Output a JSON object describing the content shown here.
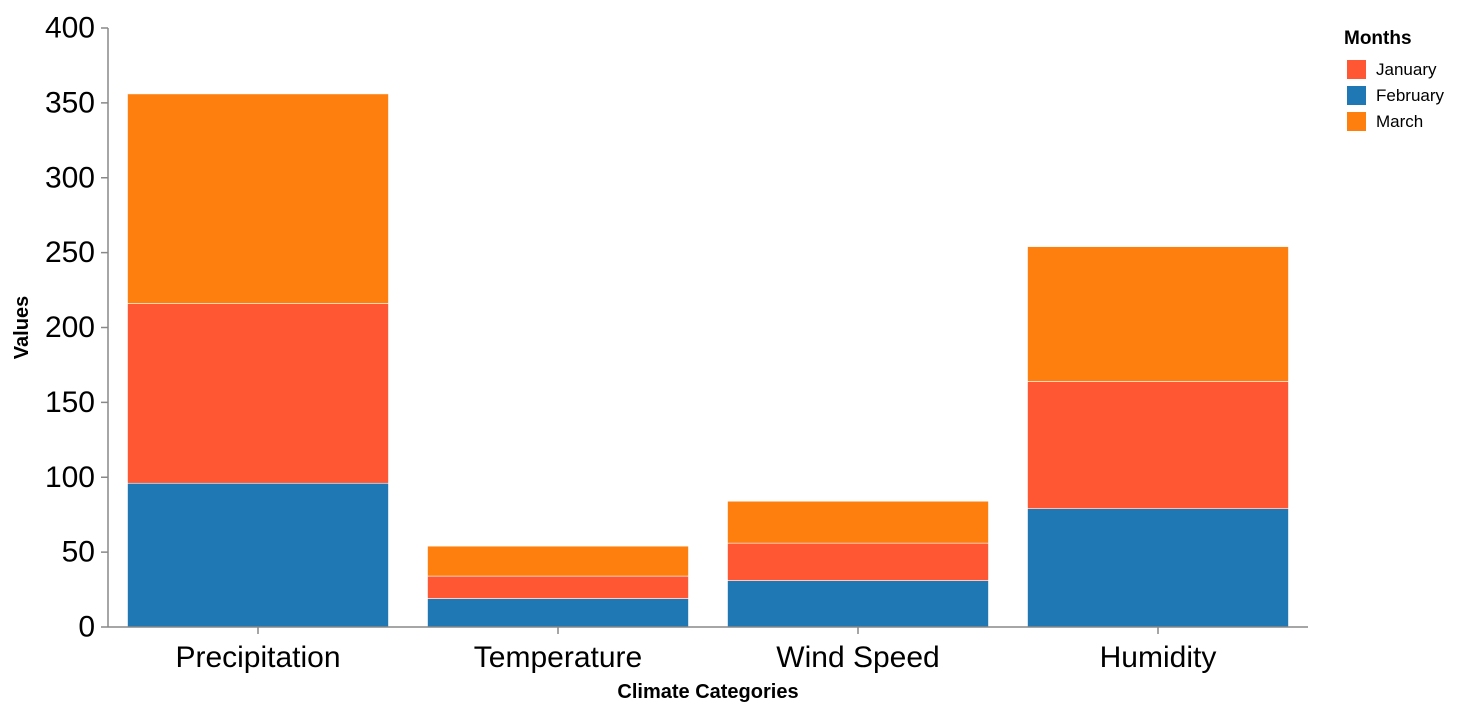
{
  "chart_data": {
    "type": "bar",
    "stacked": true,
    "categories": [
      "Precipitation",
      "Temperature",
      "Wind Speed",
      "Humidity"
    ],
    "series": [
      {
        "name": "February",
        "color": "#1f77b4",
        "values": [
          96,
          19,
          31,
          79
        ]
      },
      {
        "name": "January",
        "color": "#ff5733",
        "values": [
          120,
          15,
          25,
          85
        ]
      },
      {
        "name": "March",
        "color": "#ff7f0e",
        "values": [
          140,
          20,
          28,
          90
        ]
      }
    ],
    "xlabel": "Climate Categories",
    "ylabel": "Values",
    "ylim": [
      0,
      400
    ],
    "yticks": [
      0,
      50,
      100,
      150,
      200,
      250,
      300,
      350,
      400
    ],
    "grid": false,
    "legend": {
      "title": "Months",
      "position": "top-right",
      "items": [
        {
          "label": "January",
          "color": "#ff5733"
        },
        {
          "label": "February",
          "color": "#1f77b4"
        },
        {
          "label": "March",
          "color": "#ff7f0e"
        }
      ]
    }
  }
}
